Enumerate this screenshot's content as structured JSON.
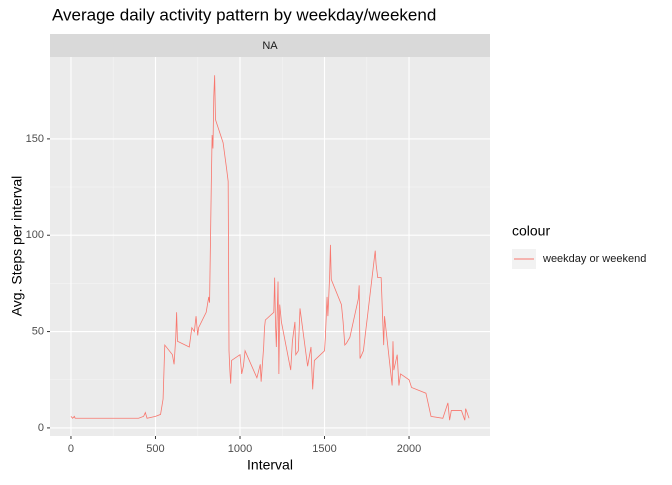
{
  "chart_data": {
    "type": "line",
    "title": "Average daily activity pattern by weekday/weekend",
    "facet_label": "NA",
    "x_label": "Interval",
    "y_label": "Avg. Steps per interval",
    "legend_title": "colour",
    "legend_position": "right",
    "grid": true,
    "x": [
      0,
      10,
      20,
      25,
      50,
      100,
      150,
      200,
      250,
      300,
      350,
      400,
      430,
      440,
      450,
      500,
      530,
      545,
      555,
      600,
      610,
      620,
      625,
      630,
      700,
      715,
      730,
      740,
      750,
      755,
      800,
      815,
      820,
      830,
      835,
      840,
      845,
      850,
      855,
      900,
      920,
      930,
      935,
      940,
      945,
      950,
      1000,
      1010,
      1020,
      1030,
      1100,
      1120,
      1125,
      1140,
      1145,
      1150,
      1200,
      1205,
      1210,
      1215,
      1225,
      1230,
      1235,
      1245,
      1300,
      1310,
      1325,
      1330,
      1345,
      1355,
      1400,
      1420,
      1425,
      1430,
      1440,
      1500,
      1505,
      1515,
      1520,
      1530,
      1535,
      1540,
      1600,
      1610,
      1620,
      1630,
      1650,
      1700,
      1705,
      1710,
      1730,
      1800,
      1805,
      1815,
      1835,
      1850,
      1855,
      1900,
      1905,
      1910,
      1930,
      1940,
      1950,
      2000,
      2015,
      2100,
      2130,
      2200,
      2230,
      2240,
      2250,
      2310,
      2330,
      2335,
      2355
    ],
    "series": [
      {
        "name": "weekday or weekend",
        "color": "#f8766d",
        "values": [
          6,
          5,
          6,
          5,
          5,
          5,
          5,
          5,
          5,
          5,
          5,
          5,
          6,
          8,
          5,
          6,
          7,
          15,
          43,
          38,
          33,
          47,
          60,
          45,
          42,
          52,
          50,
          58,
          48,
          52,
          60,
          68,
          65,
          125,
          152,
          145,
          172,
          183,
          160,
          148,
          135,
          128,
          40,
          30,
          23,
          35,
          38,
          28,
          32,
          40,
          26,
          33,
          24,
          42,
          52,
          56,
          60,
          78,
          54,
          42,
          76,
          28,
          64,
          55,
          30,
          45,
          55,
          38,
          40,
          62,
          32,
          42,
          30,
          20,
          35,
          40,
          47,
          68,
          58,
          78,
          95,
          77,
          64,
          55,
          43,
          44,
          47,
          67,
          74,
          36,
          40,
          92,
          85,
          78,
          78,
          43,
          58,
          22,
          45,
          30,
          38,
          22,
          28,
          25,
          21,
          18,
          6,
          5,
          13,
          4,
          9,
          9,
          4,
          10,
          5
        ]
      }
    ],
    "xlim": [
      -124,
      2479
    ],
    "ylim": [
      -4.2,
      192.5
    ],
    "xticks": [
      0,
      500,
      1000,
      1500,
      2000
    ],
    "yticks": [
      0,
      50,
      100,
      150
    ]
  }
}
